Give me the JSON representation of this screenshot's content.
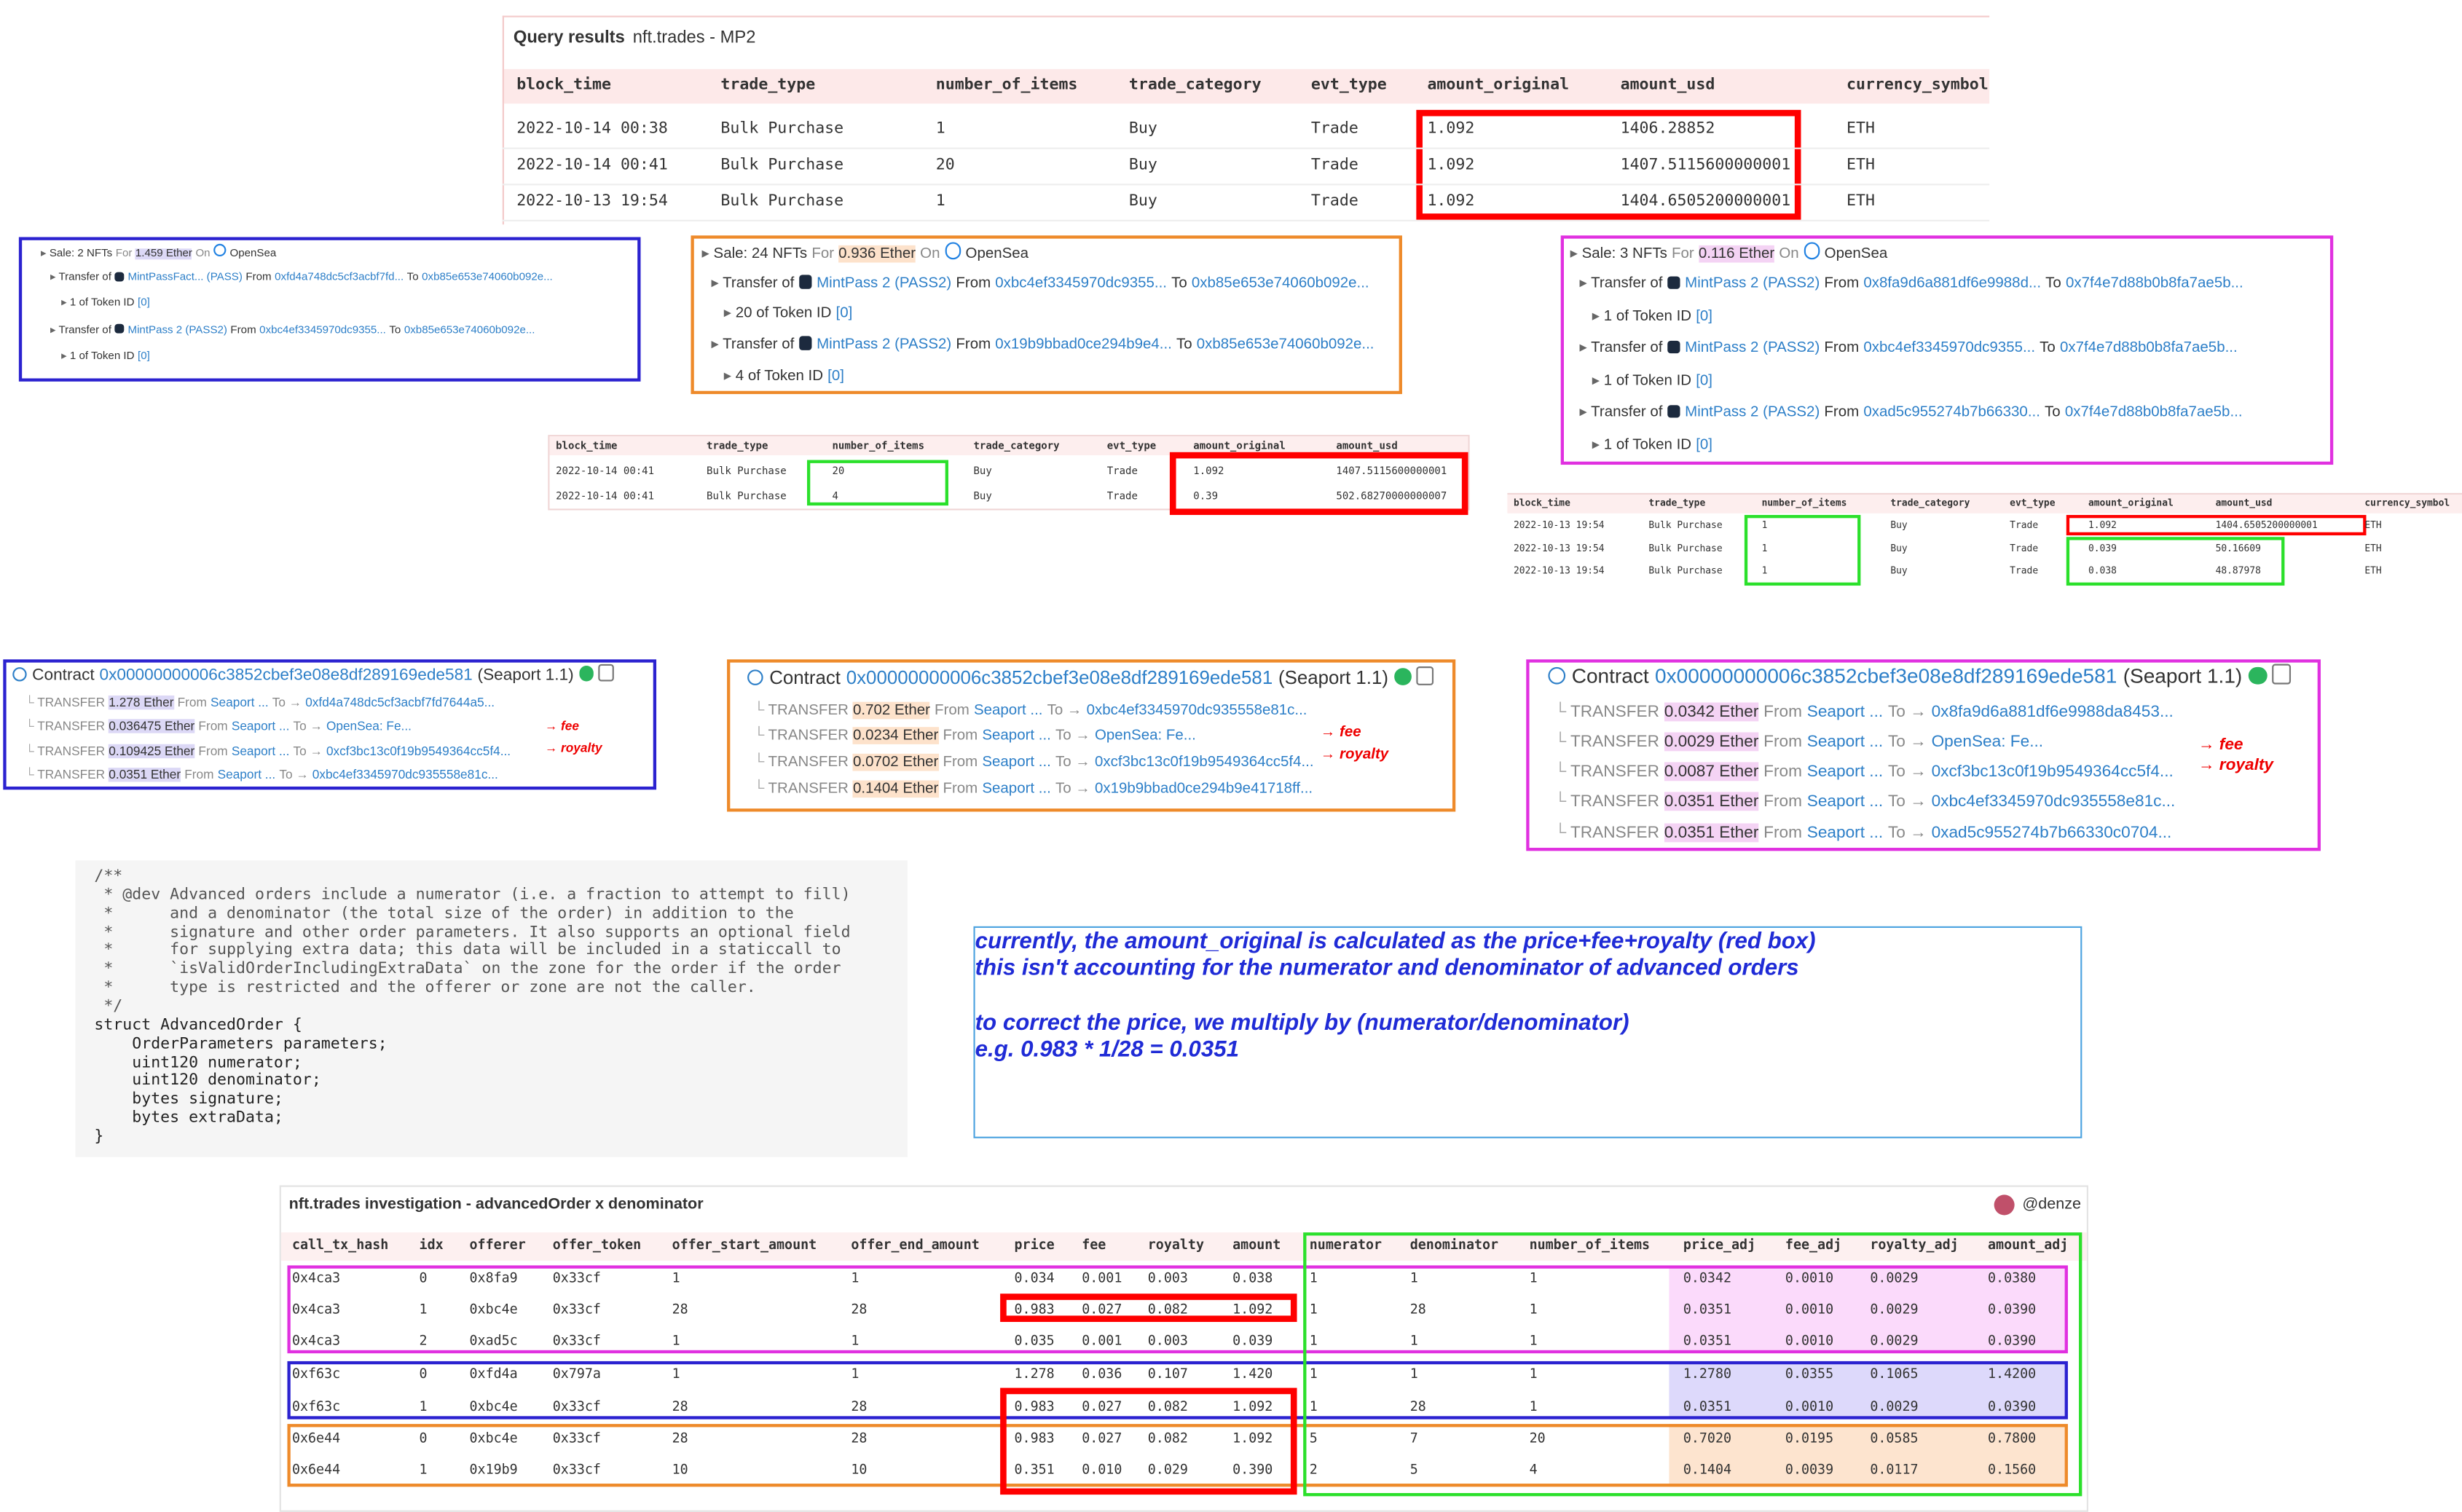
{
  "query_results": {
    "label": "Query results",
    "title": "nft.trades - MP2",
    "columns": [
      "block_time",
      "trade_type",
      "number_of_items",
      "trade_category",
      "evt_type",
      "amount_original",
      "amount_usd",
      "currency_symbol"
    ],
    "rows": [
      [
        "2022-10-14 00:38",
        "Bulk Purchase",
        "1",
        "Buy",
        "Trade",
        "1.092",
        "1406.28852",
        "ETH"
      ],
      [
        "2022-10-14 00:41",
        "Bulk Purchase",
        "20",
        "Buy",
        "Trade",
        "1.092",
        "1407.5115600000001",
        "ETH"
      ],
      [
        "2022-10-13 19:54",
        "Bulk Purchase",
        "1",
        "Buy",
        "Trade",
        "1.092",
        "1404.6505200000001",
        "ETH"
      ]
    ]
  },
  "sales": [
    {
      "header": {
        "prefix": "Sale: 2 NFTs",
        "for": "For",
        "amount": "1.459 Ether",
        "on": "On",
        "market": "OpenSea"
      },
      "transfers": [
        {
          "label": "Transfer of",
          "token": "MintPassFact... (PASS)",
          "from_label": "From",
          "from": "0xfd4a748dc5cf3acbf7fd...",
          "to_label": "To",
          "to": "0xb85e653e74060b092e...",
          "qty": "1 of Token ID",
          "token_id": "[0]"
        },
        {
          "label": "Transfer of",
          "token": "MintPass 2 (PASS2)",
          "from_label": "From",
          "from": "0xbc4ef3345970dc9355...",
          "to_label": "To",
          "to": "0xb85e653e74060b092e...",
          "qty": "1 of Token ID",
          "token_id": "[0]"
        }
      ]
    },
    {
      "header": {
        "prefix": "Sale: 24 NFTs",
        "for": "For",
        "amount": "0.936 Ether",
        "on": "On",
        "market": "OpenSea"
      },
      "transfers": [
        {
          "label": "Transfer of",
          "token": "MintPass 2 (PASS2)",
          "from_label": "From",
          "from": "0xbc4ef3345970dc9355...",
          "to_label": "To",
          "to": "0xb85e653e74060b092e...",
          "qty": "20 of Token ID",
          "token_id": "[0]"
        },
        {
          "label": "Transfer of",
          "token": "MintPass 2 (PASS2)",
          "from_label": "From",
          "from": "0x19b9bbad0ce294b9e4...",
          "to_label": "To",
          "to": "0xb85e653e74060b092e...",
          "qty": "4 of Token ID",
          "token_id": "[0]"
        }
      ]
    },
    {
      "header": {
        "prefix": "Sale: 3 NFTs",
        "for": "For",
        "amount": "0.116 Ether",
        "on": "On",
        "market": "OpenSea"
      },
      "transfers": [
        {
          "label": "Transfer of",
          "token": "MintPass 2 (PASS2)",
          "from_label": "From",
          "from": "0x8fa9d6a881df6e9988d...",
          "to_label": "To",
          "to": "0x7f4e7d88b0b8fa7ae5b...",
          "qty": "1 of Token ID",
          "token_id": "[0]"
        },
        {
          "label": "Transfer of",
          "token": "MintPass 2 (PASS2)",
          "from_label": "From",
          "from": "0xbc4ef3345970dc9355...",
          "to_label": "To",
          "to": "0x7f4e7d88b0b8fa7ae5b...",
          "qty": "1 of Token ID",
          "token_id": "[0]"
        },
        {
          "label": "Transfer of",
          "token": "MintPass 2 (PASS2)",
          "from_label": "From",
          "from": "0xad5c955274b7b66330...",
          "to_label": "To",
          "to": "0x7f4e7d88b0b8fa7ae5b...",
          "qty": "1 of Token ID",
          "token_id": "[0]"
        }
      ]
    }
  ],
  "small_tables": [
    {
      "columns": [
        "block_time",
        "trade_type",
        "number_of_items",
        "trade_category",
        "evt_type",
        "amount_original",
        "amount_usd"
      ],
      "rows": [
        [
          "2022-10-14 00:41",
          "Bulk Purchase",
          "20",
          "Buy",
          "Trade",
          "1.092",
          "1407.5115600000001"
        ],
        [
          "2022-10-14 00:41",
          "Bulk Purchase",
          "4",
          "Buy",
          "Trade",
          "0.39",
          "502.68270000000007"
        ]
      ]
    },
    {
      "columns": [
        "block_time",
        "trade_type",
        "number_of_items",
        "trade_category",
        "evt_type",
        "amount_original",
        "amount_usd",
        "currency_symbol"
      ],
      "rows": [
        [
          "2022-10-13 19:54",
          "Bulk Purchase",
          "1",
          "Buy",
          "Trade",
          "1.092",
          "1404.6505200000001",
          "ETH"
        ],
        [
          "2022-10-13 19:54",
          "Bulk Purchase",
          "1",
          "Buy",
          "Trade",
          "0.039",
          "50.16609",
          "ETH"
        ],
        [
          "2022-10-13 19:54",
          "Bulk Purchase",
          "1",
          "Buy",
          "Trade",
          "0.038",
          "48.87978",
          "ETH"
        ]
      ]
    }
  ],
  "contracts": [
    {
      "label": "Contract",
      "address": "0x00000000006c3852cbef3e08e8df289169ede581",
      "name": "(Seaport 1.1)",
      "fee": "→ fee",
      "royalty": "→ royalty",
      "transfers": [
        {
          "label": "TRANSFER",
          "amount": "1.278 Ether",
          "from_label": "From",
          "from": "Seaport ...",
          "to_label": "To →",
          "to": "0xfd4a748dc5cf3acbf7fd7644a5..."
        },
        {
          "label": "TRANSFER",
          "amount": "0.036475 Ether",
          "from_label": "From",
          "from": "Seaport ...",
          "to_label": "To →",
          "to": "OpenSea: Fe..."
        },
        {
          "label": "TRANSFER",
          "amount": "0.109425 Ether",
          "from_label": "From",
          "from": "Seaport ...",
          "to_label": "To →",
          "to": "0xcf3bc13c0f19b9549364cc5f4..."
        },
        {
          "label": "TRANSFER",
          "amount": "0.0351 Ether",
          "from_label": "From",
          "from": "Seaport ...",
          "to_label": "To →",
          "to": "0xbc4ef3345970dc935558e81c..."
        }
      ]
    },
    {
      "label": "Contract",
      "address": "0x00000000006c3852cbef3e08e8df289169ede581",
      "name": "(Seaport 1.1)",
      "fee": "→ fee",
      "royalty": "→ royalty",
      "transfers": [
        {
          "label": "TRANSFER",
          "amount": "0.702 Ether",
          "from_label": "From",
          "from": "Seaport ...",
          "to_label": "To →",
          "to": "0xbc4ef3345970dc935558e81c..."
        },
        {
          "label": "TRANSFER",
          "amount": "0.0234 Ether",
          "from_label": "From",
          "from": "Seaport ...",
          "to_label": "To →",
          "to": "OpenSea: Fe..."
        },
        {
          "label": "TRANSFER",
          "amount": "0.0702 Ether",
          "from_label": "From",
          "from": "Seaport ...",
          "to_label": "To →",
          "to": "0xcf3bc13c0f19b9549364cc5f4..."
        },
        {
          "label": "TRANSFER",
          "amount": "0.1404 Ether",
          "from_label": "From",
          "from": "Seaport ...",
          "to_label": "To →",
          "to": "0x19b9bbad0ce294b9e41718ff..."
        }
      ]
    },
    {
      "label": "Contract",
      "address": "0x00000000006c3852cbef3e08e8df289169ede581",
      "name": "(Seaport 1.1)",
      "fee": "→ fee",
      "royalty": "→ royalty",
      "transfers": [
        {
          "label": "TRANSFER",
          "amount": "0.0342 Ether",
          "from_label": "From",
          "from": "Seaport ...",
          "to_label": "To →",
          "to": "0x8fa9d6a881df6e9988da8453..."
        },
        {
          "label": "TRANSFER",
          "amount": "0.0029 Ether",
          "from_label": "From",
          "from": "Seaport ...",
          "to_label": "To →",
          "to": "OpenSea: Fe..."
        },
        {
          "label": "TRANSFER",
          "amount": "0.0087 Ether",
          "from_label": "From",
          "from": "Seaport ...",
          "to_label": "To →",
          "to": "0xcf3bc13c0f19b9549364cc5f4..."
        },
        {
          "label": "TRANSFER",
          "amount": "0.0351 Ether",
          "from_label": "From",
          "from": "Seaport ...",
          "to_label": "To →",
          "to": "0xbc4ef3345970dc935558e81c..."
        },
        {
          "label": "TRANSFER",
          "amount": "0.0351 Ether",
          "from_label": "From",
          "from": "Seaport ...",
          "to_label": "To →",
          "to": "0xad5c955274b7b66330c0704..."
        }
      ]
    }
  ],
  "code": {
    "lines": [
      "/**",
      " * @dev Advanced orders include a numerator (i.e. a fraction to attempt to fill)",
      " *      and a denominator (the total size of the order) in addition to the",
      " *      signature and other order parameters. It also supports an optional field",
      " *      for supplying extra data; this data will be included in a staticcall to",
      " *      `isValidOrderIncludingExtraData` on the zone for the order if the order",
      " *      type is restricted and the offerer or zone are not the caller.",
      " */",
      "struct AdvancedOrder {",
      "    OrderParameters parameters;",
      "    uint120 numerator;",
      "    uint120 denominator;",
      "    bytes signature;",
      "    bytes extraData;",
      "}"
    ]
  },
  "note": {
    "lines": [
      "currently, the amount_original is calculated as the price+fee+royalty (red box)",
      "this isn't accounting for the numerator and denominator of advanced orders",
      "to correct the price, we multiply by (numerator/denominator)",
      "e.g. 0.983 * 1/28 = 0.0351"
    ]
  },
  "investigation": {
    "title": "nft.trades investigation - advancedOrder x denominator",
    "user": "@denze",
    "columns": [
      "call_tx_hash",
      "idx",
      "offerer",
      "offer_token",
      "offer_start_amount",
      "offer_end_amount",
      "price",
      "fee",
      "royalty",
      "amount",
      "numerator",
      "denominator",
      "number_of_items",
      "price_adj",
      "fee_adj",
      "royalty_adj",
      "amount_adj"
    ],
    "rows": [
      [
        "0x4ca3",
        "0",
        "0x8fa9",
        "0x33cf",
        "1",
        "1",
        "0.034",
        "0.001",
        "0.003",
        "0.038",
        "1",
        "1",
        "1",
        "0.0342",
        "0.0010",
        "0.0029",
        "0.0380"
      ],
      [
        "0x4ca3",
        "1",
        "0xbc4e",
        "0x33cf",
        "28",
        "28",
        "0.983",
        "0.027",
        "0.082",
        "1.092",
        "1",
        "28",
        "1",
        "0.0351",
        "0.0010",
        "0.0029",
        "0.0390"
      ],
      [
        "0x4ca3",
        "2",
        "0xad5c",
        "0x33cf",
        "1",
        "1",
        "0.035",
        "0.001",
        "0.003",
        "0.039",
        "1",
        "1",
        "1",
        "0.0351",
        "0.0010",
        "0.0029",
        "0.0390"
      ],
      [
        "0xf63c",
        "0",
        "0xfd4a",
        "0x797a",
        "1",
        "1",
        "1.278",
        "0.036",
        "0.107",
        "1.420",
        "1",
        "1",
        "1",
        "1.2780",
        "0.0355",
        "0.1065",
        "1.4200"
      ],
      [
        "0xf63c",
        "1",
        "0xbc4e",
        "0x33cf",
        "28",
        "28",
        "0.983",
        "0.027",
        "0.082",
        "1.092",
        "1",
        "28",
        "1",
        "0.0351",
        "0.0010",
        "0.0029",
        "0.0390"
      ],
      [
        "0x6e44",
        "0",
        "0xbc4e",
        "0x33cf",
        "28",
        "28",
        "0.983",
        "0.027",
        "0.082",
        "1.092",
        "5",
        "7",
        "20",
        "0.7020",
        "0.0195",
        "0.0585",
        "0.7800"
      ],
      [
        "0x6e44",
        "1",
        "0x19b9",
        "0x33cf",
        "10",
        "10",
        "0.351",
        "0.010",
        "0.029",
        "0.390",
        "2",
        "5",
        "4",
        "0.1404",
        "0.0039",
        "0.0117",
        "0.1560"
      ]
    ]
  }
}
